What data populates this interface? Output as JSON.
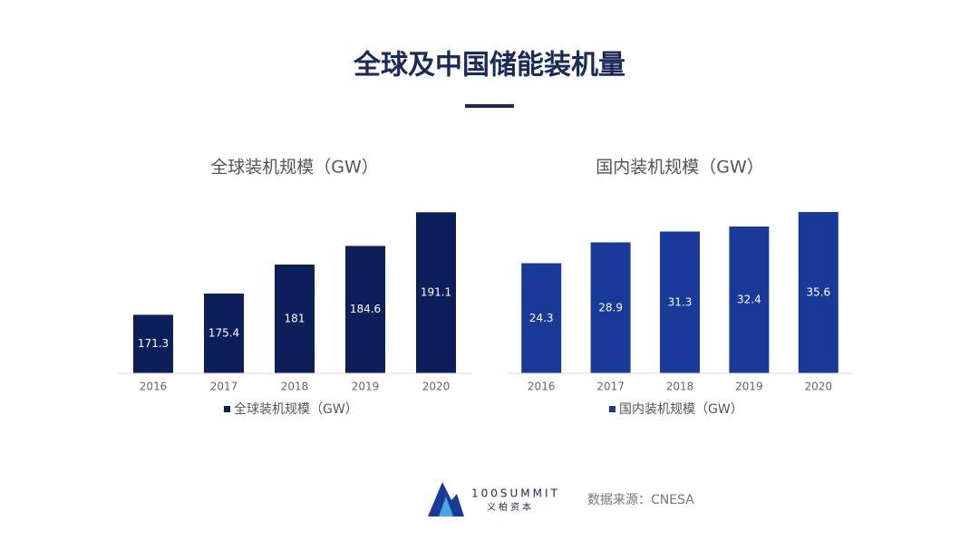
{
  "header": {
    "title": "全球及中国储能装机量"
  },
  "chart_data": [
    {
      "type": "bar",
      "title": "全球装机规模（GW）",
      "categories": [
        "2016",
        "2017",
        "2018",
        "2019",
        "2020"
      ],
      "series": [
        {
          "name": "全球装机规模（GW）",
          "color": "#0c1f5a",
          "values": [
            171.3,
            175.4,
            181,
            184.6,
            191.1
          ]
        }
      ],
      "ylim": [
        160,
        195
      ],
      "legend": "bottom"
    },
    {
      "type": "bar",
      "title": "国内装机规模（GW）",
      "categories": [
        "2016",
        "2017",
        "2018",
        "2019",
        "2020"
      ],
      "series": [
        {
          "name": "国内装机规模（GW）",
          "color": "#1a3a9a",
          "values": [
            24.3,
            28.9,
            31.3,
            32.4,
            35.6
          ]
        }
      ],
      "ylim": [
        0,
        40
      ],
      "legend": "bottom"
    }
  ],
  "footer": {
    "logo": "100SUMMIT",
    "logo_sub": "义柏资本",
    "source": "数据来源：CNESA"
  }
}
